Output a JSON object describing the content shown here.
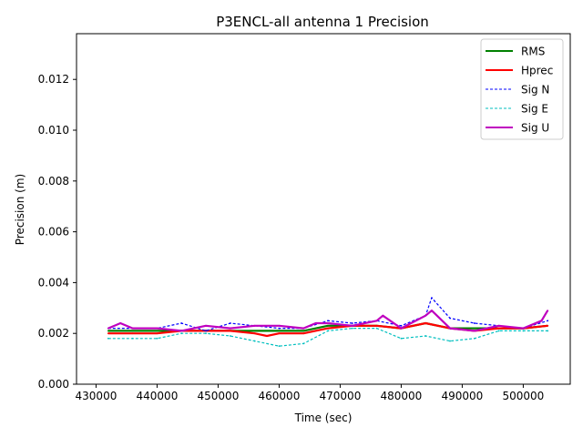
{
  "chart_data": {
    "type": "line",
    "title": "P3ENCL-all antenna 1 Precision",
    "xlabel": "Time (sec)",
    "ylabel": "Precision (m)",
    "xlim": [
      426800,
      507700
    ],
    "ylim": [
      0.0,
      0.0138
    ],
    "xticks": [
      430000,
      440000,
      450000,
      460000,
      470000,
      480000,
      490000,
      500000
    ],
    "xtick_labels": [
      "430000",
      "440000",
      "450000",
      "460000",
      "470000",
      "480000",
      "490000",
      "500000"
    ],
    "yticks": [
      0.0,
      0.002,
      0.004,
      0.006,
      0.008,
      0.01,
      0.012
    ],
    "ytick_labels": [
      "0.000",
      "0.002",
      "0.004",
      "0.006",
      "0.008",
      "0.010",
      "0.012"
    ],
    "legend_position": "top-right",
    "grid": false,
    "series": [
      {
        "name": "RMS",
        "color": "#008000",
        "style": "solid",
        "x": [
          432000,
          436000,
          440000,
          444000,
          448000,
          452000,
          456000,
          460000,
          464000,
          468000,
          472000,
          476000,
          480000,
          484000,
          488000,
          492000,
          496000,
          500000,
          504000
        ],
        "y": [
          0.0021,
          0.0021,
          0.0021,
          0.0021,
          0.0021,
          0.0021,
          0.0021,
          0.0021,
          0.0021,
          0.0023,
          0.0023,
          0.0023,
          0.0022,
          0.0024,
          0.0022,
          0.0022,
          0.0022,
          0.0022,
          0.0023
        ]
      },
      {
        "name": "Hprec",
        "color": "#ff0000",
        "style": "solid",
        "x": [
          432000,
          436000,
          440000,
          444000,
          448000,
          452000,
          456000,
          458000,
          460000,
          464000,
          468000,
          472000,
          476000,
          480000,
          484000,
          488000,
          492000,
          496000,
          500000,
          504000
        ],
        "y": [
          0.002,
          0.002,
          0.002,
          0.0021,
          0.0021,
          0.0021,
          0.002,
          0.0019,
          0.002,
          0.002,
          0.0022,
          0.0023,
          0.0023,
          0.0022,
          0.0024,
          0.0022,
          0.0021,
          0.0022,
          0.0022,
          0.0023
        ]
      },
      {
        "name": "Sig N",
        "color": "#0000ff",
        "style": "dashed",
        "x": [
          432000,
          436000,
          440000,
          444000,
          448000,
          452000,
          456000,
          460000,
          464000,
          468000,
          472000,
          476000,
          480000,
          484000,
          485000,
          488000,
          492000,
          496000,
          500000,
          504000
        ],
        "y": [
          0.0022,
          0.0022,
          0.0022,
          0.0024,
          0.0021,
          0.0024,
          0.0023,
          0.0022,
          0.0022,
          0.0025,
          0.0024,
          0.0025,
          0.0023,
          0.0027,
          0.0034,
          0.0026,
          0.0024,
          0.0023,
          0.0022,
          0.0025
        ]
      },
      {
        "name": "Sig E",
        "color": "#00bfbf",
        "style": "dashed",
        "x": [
          432000,
          436000,
          440000,
          444000,
          448000,
          452000,
          456000,
          460000,
          464000,
          468000,
          472000,
          476000,
          480000,
          484000,
          488000,
          492000,
          496000,
          500000,
          504000
        ],
        "y": [
          0.0018,
          0.0018,
          0.0018,
          0.002,
          0.002,
          0.0019,
          0.0017,
          0.0015,
          0.0016,
          0.0021,
          0.0022,
          0.0022,
          0.0018,
          0.0019,
          0.0017,
          0.0018,
          0.0021,
          0.0021,
          0.0021
        ]
      },
      {
        "name": "Sig U",
        "color": "#bf00bf",
        "style": "solid",
        "x": [
          432000,
          434000,
          436000,
          440000,
          444000,
          448000,
          452000,
          456000,
          460000,
          464000,
          466000,
          468000,
          472000,
          476000,
          477000,
          480000,
          484000,
          485000,
          488000,
          492000,
          496000,
          500000,
          503000,
          504000
        ],
        "y": [
          0.0022,
          0.0024,
          0.0022,
          0.0022,
          0.0021,
          0.0023,
          0.0022,
          0.0023,
          0.0023,
          0.0022,
          0.0024,
          0.0024,
          0.0023,
          0.0025,
          0.0027,
          0.0022,
          0.0027,
          0.0029,
          0.0022,
          0.0021,
          0.0023,
          0.0022,
          0.0025,
          0.0029
        ]
      }
    ]
  }
}
